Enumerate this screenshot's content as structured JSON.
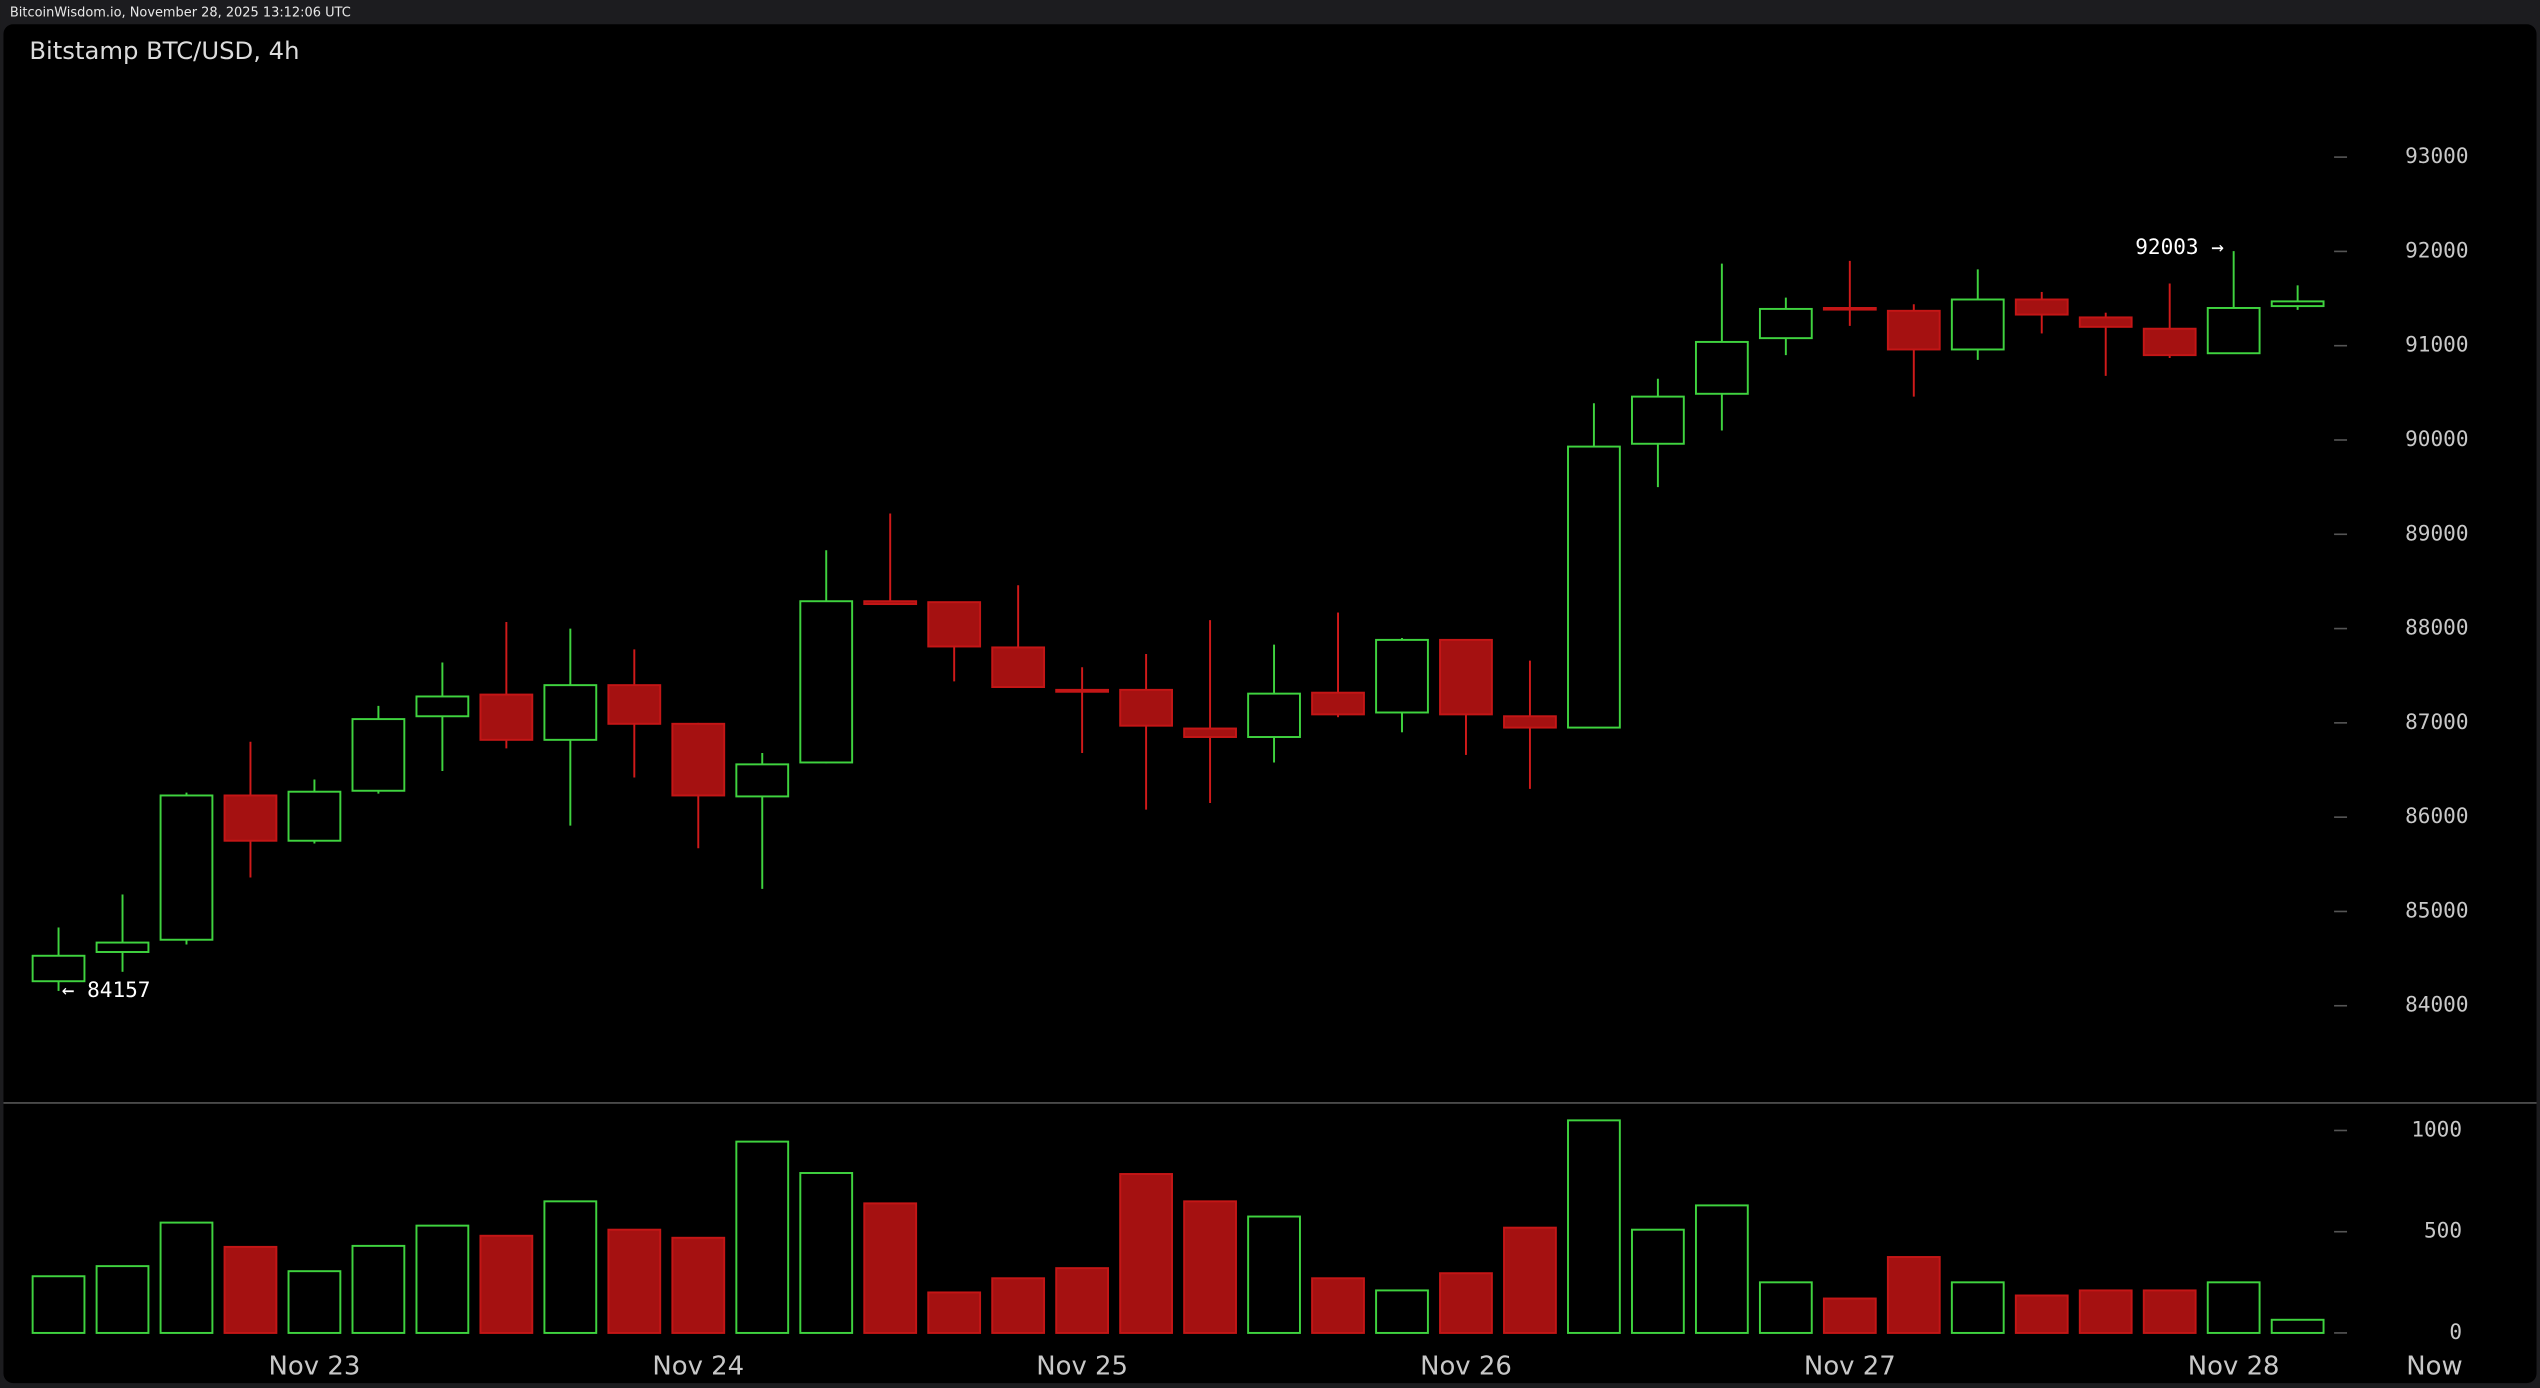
{
  "header": "BitcoinWisdom.io, November 28, 2025 13:12:06 UTC",
  "chart_data": {
    "type": "candlestick",
    "title": "Bitstamp BTC/USD, 4h",
    "categories": [
      null,
      null,
      null,
      null,
      "Nov 23",
      null,
      null,
      null,
      null,
      null,
      "Nov 24",
      null,
      null,
      null,
      null,
      null,
      "Nov 25",
      null,
      null,
      null,
      null,
      null,
      "Nov 26",
      null,
      null,
      null,
      null,
      null,
      "Nov 27",
      null,
      null,
      null,
      null,
      null,
      "Nov 28",
      null
    ],
    "open": [
      84260,
      84570,
      84700,
      86230,
      85750,
      86280,
      87070,
      87300,
      86820,
      87400,
      86990,
      86220,
      86580,
      88290,
      88280,
      87800,
      87350,
      87350,
      86940,
      86850,
      87320,
      87110,
      87880,
      87070,
      86950,
      89960,
      90490,
      91080,
      91400,
      91370,
      90960,
      91490,
      91300,
      91180,
      90920,
      91420
    ],
    "high": [
      84830,
      85180,
      86260,
      86800,
      86400,
      87180,
      87640,
      88070,
      88000,
      87780,
      87000,
      86680,
      88830,
      89220,
      88280,
      88460,
      87590,
      87730,
      88090,
      87830,
      88170,
      87900,
      87880,
      87660,
      90390,
      90650,
      91870,
      91510,
      91900,
      91440,
      91810,
      91570,
      91350,
      91660,
      92003,
      91640
    ],
    "low": [
      84157,
      84360,
      84650,
      85360,
      85720,
      86250,
      86490,
      86730,
      85910,
      86420,
      85670,
      85240,
      86570,
      88260,
      87440,
      87380,
      86680,
      86080,
      86150,
      86580,
      87060,
      86900,
      86660,
      86300,
      86940,
      89500,
      90100,
      90900,
      91210,
      90460,
      90850,
      91130,
      90680,
      90870,
      90920,
      91380
    ],
    "close": [
      84530,
      84670,
      86230,
      85750,
      86270,
      87040,
      87280,
      86820,
      87400,
      86990,
      86230,
      86560,
      88290,
      88260,
      87810,
      87380,
      87330,
      86970,
      86850,
      87310,
      87090,
      87880,
      87090,
      86950,
      89930,
      90460,
      91040,
      91390,
      91390,
      90960,
      91490,
      91330,
      91200,
      90900,
      91400,
      91470
    ],
    "volume": [
      280,
      330,
      545,
      425,
      305,
      430,
      530,
      480,
      650,
      510,
      470,
      945,
      790,
      640,
      200,
      270,
      320,
      785,
      650,
      575,
      270,
      210,
      295,
      520,
      1050,
      510,
      630,
      250,
      170,
      375,
      250,
      185,
      210,
      210,
      250,
      65
    ],
    "ylim": [
      83000,
      94400
    ],
    "yticks": [
      84000,
      85000,
      86000,
      87000,
      88000,
      89000,
      90000,
      91000,
      92000,
      93000
    ],
    "y2lim": [
      0,
      1100
    ],
    "y2ticks": [
      0,
      500,
      1000
    ],
    "up_color": "#3fd33f",
    "down_color": "#a51111",
    "high_label": {
      "value": 92003,
      "label": "92003 →"
    },
    "low_label": {
      "value": 84157,
      "label": "← 84157"
    },
    "now_label": "Now"
  }
}
